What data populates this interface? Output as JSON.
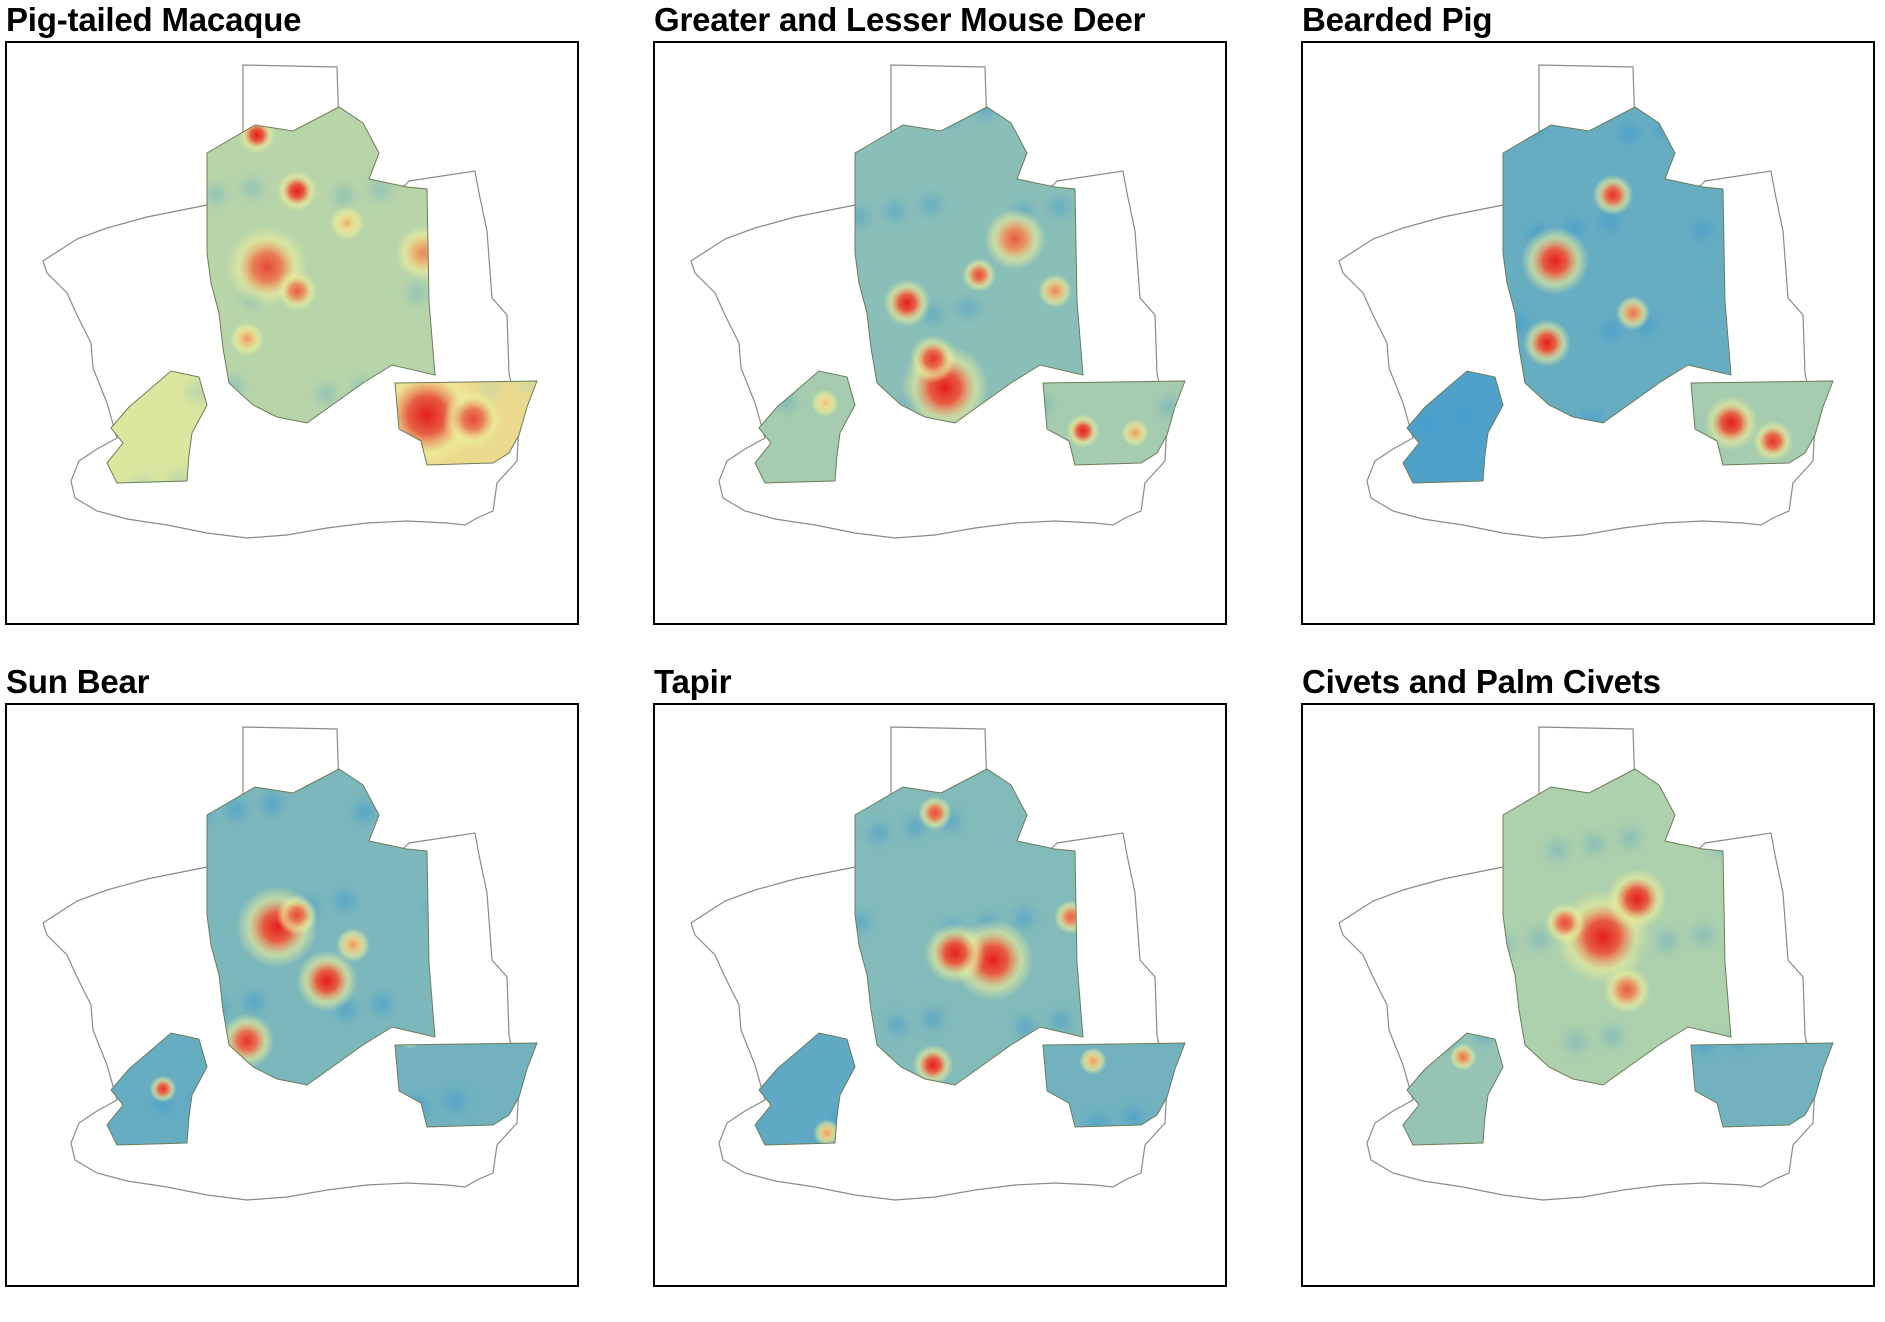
{
  "panels": [
    {
      "title": "Pig-tailed Macaque",
      "colors": {
        "low": "#3d98cf",
        "mid": "#ecef9a",
        "high": "#e51e1e",
        "boundary": "#8a8a8a"
      },
      "base": {
        "main": 0.35,
        "southwest": 0.45,
        "southeast": 0.55
      },
      "hotspots": [
        {
          "zone": "main",
          "level": 1.0,
          "r": 0.55
        },
        {
          "zone": "main",
          "level": 1.0,
          "r": 0.6
        },
        {
          "zone": "main",
          "level": 0.9,
          "r": 1.2
        },
        {
          "zone": "main",
          "level": 0.85,
          "r": 0.6
        },
        {
          "zone": "main",
          "level": 0.75,
          "r": 0.8
        },
        {
          "zone": "main",
          "level": 0.7,
          "r": 0.5
        },
        {
          "zone": "main",
          "level": 0.65,
          "r": 0.5
        },
        {
          "zone": "southeast",
          "level": 1.0,
          "r": 1.6
        },
        {
          "zone": "southeast",
          "level": 0.9,
          "r": 0.9
        }
      ]
    },
    {
      "title": "Greater and Lesser Mouse Deer",
      "colors": {
        "low": "#3d98cf",
        "mid": "#ecef9a",
        "high": "#e51e1e",
        "boundary": "#8a8a8a"
      },
      "base": {
        "main": 0.22,
        "southwest": 0.3,
        "southeast": 0.3
      },
      "hotspots": [
        {
          "zone": "main",
          "level": 1.0,
          "r": 1.3
        },
        {
          "zone": "main",
          "level": 1.0,
          "r": 0.7
        },
        {
          "zone": "main",
          "level": 0.95,
          "r": 0.7
        },
        {
          "zone": "main",
          "level": 0.9,
          "r": 0.5
        },
        {
          "zone": "main",
          "level": 0.85,
          "r": 0.9
        },
        {
          "zone": "main",
          "level": 0.75,
          "r": 0.5
        },
        {
          "zone": "southeast",
          "level": 1.0,
          "r": 0.5
        },
        {
          "zone": "southeast",
          "level": 0.7,
          "r": 0.4
        },
        {
          "zone": "southwest",
          "level": 0.6,
          "r": 0.4
        }
      ]
    },
    {
      "title": "Bearded Pig",
      "colors": {
        "low": "#3d98cf",
        "mid": "#ecef9a",
        "high": "#e51e1e",
        "boundary": "#8a8a8a"
      },
      "base": {
        "main": 0.12,
        "southwest": 0.05,
        "southeast": 0.3
      },
      "hotspots": [
        {
          "zone": "main",
          "level": 1.0,
          "r": 0.9
        },
        {
          "zone": "main",
          "level": 1.0,
          "r": 1.0
        },
        {
          "zone": "main",
          "level": 1.0,
          "r": 0.7
        },
        {
          "zone": "main",
          "level": 0.95,
          "r": 0.6
        },
        {
          "zone": "main",
          "level": 0.8,
          "r": 0.5
        },
        {
          "zone": "southeast",
          "level": 1.0,
          "r": 0.8
        },
        {
          "zone": "southeast",
          "level": 0.95,
          "r": 0.6
        }
      ]
    },
    {
      "title": "Sun Bear",
      "colors": {
        "low": "#3d98cf",
        "mid": "#ecef9a",
        "high": "#e51e1e",
        "boundary": "#8a8a8a"
      },
      "base": {
        "main": 0.18,
        "southwest": 0.12,
        "southeast": 0.15
      },
      "hotspots": [
        {
          "zone": "main",
          "level": 1.0,
          "r": 1.2
        },
        {
          "zone": "main",
          "level": 1.0,
          "r": 0.9
        },
        {
          "zone": "main",
          "level": 0.95,
          "r": 0.8
        },
        {
          "zone": "main",
          "level": 0.9,
          "r": 0.6
        },
        {
          "zone": "main",
          "level": 0.7,
          "r": 0.5
        },
        {
          "zone": "southwest",
          "level": 0.95,
          "r": 0.4
        },
        {
          "zone": "southeast",
          "level": 0.6,
          "r": 0.4
        }
      ]
    },
    {
      "title": "Tapir",
      "colors": {
        "low": "#3d98cf",
        "mid": "#ecef9a",
        "high": "#e51e1e",
        "boundary": "#8a8a8a"
      },
      "base": {
        "main": 0.2,
        "southwest": 0.1,
        "southeast": 0.15
      },
      "hotspots": [
        {
          "zone": "main",
          "level": 1.0,
          "r": 1.2
        },
        {
          "zone": "main",
          "level": 1.0,
          "r": 0.9
        },
        {
          "zone": "main",
          "level": 1.0,
          "r": 0.6
        },
        {
          "zone": "main",
          "level": 0.9,
          "r": 0.5
        },
        {
          "zone": "main",
          "level": 0.85,
          "r": 0.5
        },
        {
          "zone": "southwest",
          "level": 0.7,
          "r": 0.4
        },
        {
          "zone": "southeast",
          "level": 0.7,
          "r": 0.4
        }
      ]
    },
    {
      "title": "Civets and Palm Civets",
      "colors": {
        "low": "#3d98cf",
        "mid": "#ecef9a",
        "high": "#e51e1e",
        "boundary": "#8a8a8a"
      },
      "base": {
        "main": 0.32,
        "southwest": 0.25,
        "southeast": 0.15
      },
      "hotspots": [
        {
          "zone": "main",
          "level": 1.0,
          "r": 1.4
        },
        {
          "zone": "main",
          "level": 1.0,
          "r": 0.9
        },
        {
          "zone": "main",
          "level": 0.95,
          "r": 1.0
        },
        {
          "zone": "main",
          "level": 0.9,
          "r": 0.6
        },
        {
          "zone": "main",
          "level": 0.85,
          "r": 0.7
        },
        {
          "zone": "southwest",
          "level": 1.0,
          "r": 0.5
        },
        {
          "zone": "southwest",
          "level": 0.8,
          "r": 0.4
        }
      ]
    }
  ]
}
